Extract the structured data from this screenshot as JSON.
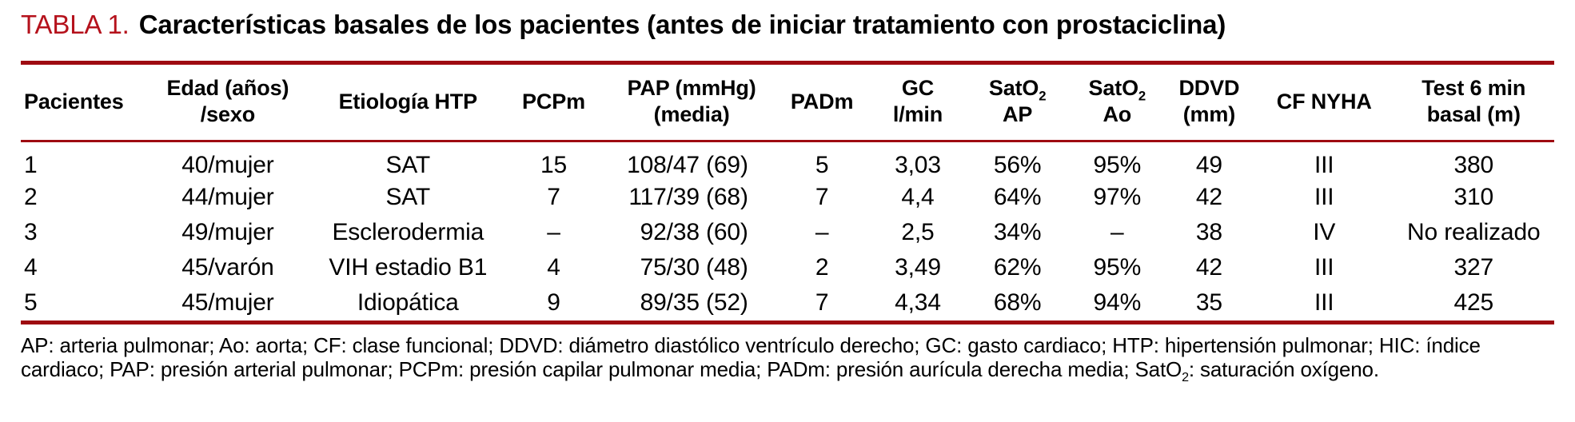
{
  "title": {
    "label": "TABLA 1.",
    "text": "Características basales de los pacientes (antes de iniciar tratamiento con prostaciclina)"
  },
  "colors": {
    "rule_red": "#9e0b11",
    "title_red": "#b5121c"
  },
  "table": {
    "columns": [
      {
        "name": "pacientes",
        "header": [
          [
            "Pacientes"
          ]
        ]
      },
      {
        "name": "edad-sexo",
        "header": [
          [
            "Edad (años)"
          ],
          [
            "/sexo"
          ]
        ]
      },
      {
        "name": "etiologia-htp",
        "header": [
          [
            "Etiología HTP"
          ]
        ]
      },
      {
        "name": "pcpm",
        "header": [
          [
            "PCPm"
          ]
        ]
      },
      {
        "name": "pap-media",
        "header": [
          [
            "PAP (mmHg)"
          ],
          [
            "(media)"
          ]
        ]
      },
      {
        "name": "padm",
        "header": [
          [
            "PADm"
          ]
        ]
      },
      {
        "name": "gc-lmin",
        "header": [
          [
            "GC"
          ],
          [
            "l/min"
          ]
        ]
      },
      {
        "name": "sato2-ap",
        "header": [
          [
            "SatO",
            {
              "sub": "2"
            }
          ],
          [
            "AP"
          ]
        ]
      },
      {
        "name": "sato2-ao",
        "header": [
          [
            "SatO",
            {
              "sub": "2"
            }
          ],
          [
            "Ao"
          ]
        ]
      },
      {
        "name": "ddvd-mm",
        "header": [
          [
            "DDVD"
          ],
          [
            "(mm)"
          ]
        ]
      },
      {
        "name": "cf-nyha",
        "header": [
          [
            "CF NYHA"
          ]
        ]
      },
      {
        "name": "test-6min-basal",
        "header": [
          [
            "Test 6 min"
          ],
          [
            "basal (m)"
          ]
        ]
      }
    ],
    "rows": [
      [
        "1",
        "40/mujer",
        "SAT",
        "15",
        "108/47 (69)",
        "5",
        "3,03",
        "56%",
        "95%",
        "49",
        "III",
        "380"
      ],
      [
        "2",
        "44/mujer",
        "SAT",
        "7",
        "117/39 (68)",
        "7",
        "4,4",
        "64%",
        "97%",
        "42",
        "III",
        "310"
      ],
      [
        "3",
        "49/mujer",
        "Esclerodermia",
        "–",
        "92/38 (60)",
        "–",
        "2,5",
        "34%",
        "–",
        "38",
        "IV",
        "No realizado"
      ],
      [
        "4",
        "45/varón",
        "VIH estadio B1",
        "4",
        "75/30 (48)",
        "2",
        "3,49",
        "62%",
        "95%",
        "42",
        "III",
        "327"
      ],
      [
        "5",
        "45/mujer",
        "Idiopática",
        "9",
        "89/35 (52)",
        "7",
        "4,34",
        "68%",
        "94%",
        "35",
        "III",
        "425"
      ]
    ]
  },
  "footnote": {
    "lines": [
      [
        "AP: arteria pulmonar; Ao: aorta; CF: clase funcional; DDVD: diámetro diastólico ventrículo derecho; GC: gasto cardiaco; HTP: hipertensión pulmonar; HIC: índice"
      ],
      [
        "cardiaco; PAP: presión arterial pulmonar; PCPm: presión capilar pulmonar media; PADm: presión aurícula derecha media; SatO",
        {
          "sub": "2"
        },
        ": saturación oxígeno."
      ]
    ]
  }
}
